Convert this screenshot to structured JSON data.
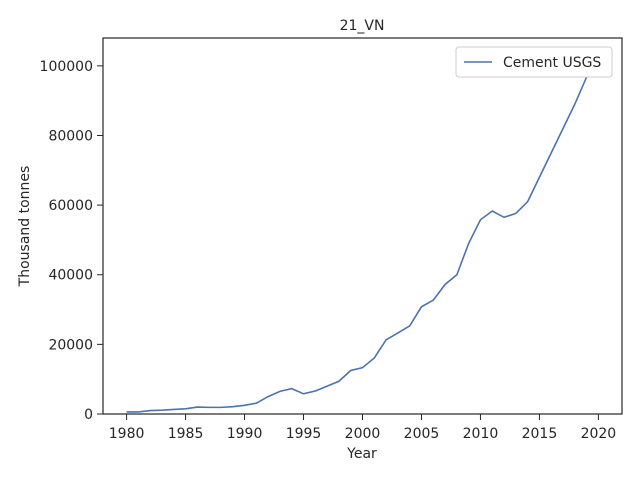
{
  "chart_data": {
    "type": "line",
    "title": "21_VN",
    "xlabel": "Year",
    "ylabel": "Thousand tonnes",
    "x": [
      1980,
      1981,
      1982,
      1983,
      1984,
      1985,
      1986,
      1987,
      1988,
      1989,
      1990,
      1991,
      1992,
      1993,
      1994,
      1995,
      1996,
      1997,
      1998,
      1999,
      2000,
      2001,
      2002,
      2003,
      2004,
      2005,
      2006,
      2007,
      2008,
      2009,
      2010,
      2011,
      2012,
      2013,
      2014,
      2015,
      2016,
      2017,
      2018,
      2019,
      2020
    ],
    "series": [
      {
        "name": "Cement USGS",
        "color": "#4c72b0",
        "values": [
          600,
          600,
          1000,
          1100,
          1300,
          1500,
          2000,
          1900,
          1900,
          2100,
          2500,
          3100,
          5000,
          6500,
          7300,
          5800,
          6600,
          8000,
          9400,
          12500,
          13300,
          16100,
          21300,
          23300,
          25300,
          30800,
          32700,
          37200,
          40000,
          49000,
          55800,
          58300,
          56500,
          57600,
          61000,
          68000,
          75000,
          82000,
          89000,
          96800,
          98000
        ]
      }
    ],
    "xlim": [
      1978,
      2022
    ],
    "xticks": [
      1980,
      1985,
      1990,
      1995,
      2000,
      2005,
      2010,
      2015,
      2020
    ],
    "ylim": [
      0,
      108000
    ],
    "yticks": [
      0,
      20000,
      40000,
      60000,
      80000,
      100000
    ],
    "legend": "upper right"
  }
}
